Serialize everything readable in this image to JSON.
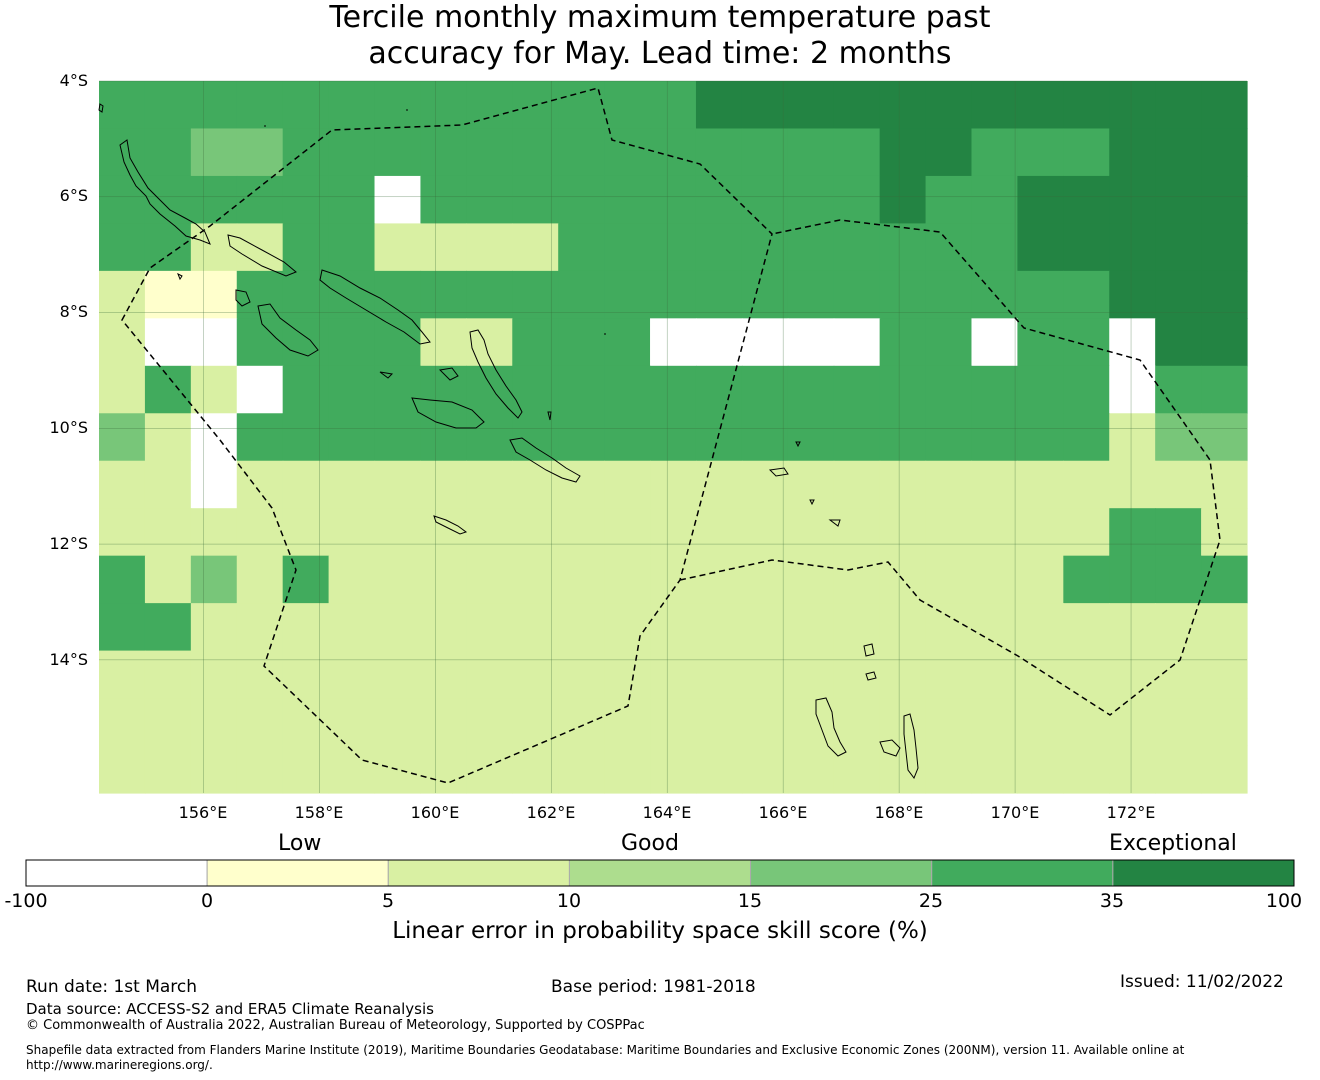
{
  "title": {
    "line1": "Tercile monthly maximum temperature past",
    "line2": "accuracy for May. Lead time: 2 months"
  },
  "map": {
    "lat_labels": [
      "4°S",
      "6°S",
      "8°S",
      "10°S",
      "12°S",
      "14°S"
    ],
    "lon_labels": [
      "156°E",
      "158°E",
      "160°E",
      "162°E",
      "164°E",
      "166°E",
      "168°E",
      "170°E",
      "172°E"
    ],
    "lon_range": [
      154.2,
      174.0
    ],
    "lat_range": [
      -16.3,
      -4.0
    ],
    "grid_res_deg": 0.833,
    "skill_grid_categories": [
      "0000000000000666666666666",
      "0044000000000000066000666",
      "0000005000000000060066666",
      "0033003333000000000066666",
      "3220000000000000000000666",
      "3110000330001111100100566",
      "3031000000000000000000500",
      "4310000000000000000000344",
      "3313333333333333333333333",
      "3333333333333333333333003",
      "0343033333333333333330000",
      "0033333333333333333333333",
      "3333333333333333333333333",
      "3333333333333333333333333",
      "3333333333333333333333333"
    ],
    "palette": [
      "#41ab5d",
      "#ffffff",
      "#ffffcc",
      "#d9f0a3",
      "#78c679",
      "#ffffff",
      "#238443",
      "#addd8e"
    ]
  },
  "colorbar": {
    "categories": [
      "Low",
      "Good",
      "Exceptional"
    ],
    "bins": [
      {
        "from": "-100",
        "to": "0",
        "color": "#ffffff"
      },
      {
        "from": "0",
        "to": "5",
        "color": "#ffffcc"
      },
      {
        "from": "5",
        "to": "10",
        "color": "#d9f0a3"
      },
      {
        "from": "10",
        "to": "15",
        "color": "#addd8e"
      },
      {
        "from": "15",
        "to": "25",
        "color": "#78c679"
      },
      {
        "from": "25",
        "to": "35",
        "color": "#41ab5d"
      },
      {
        "from": "35",
        "to": "100",
        "color": "#238443"
      }
    ],
    "ticks": [
      "-100",
      "0",
      "5",
      "10",
      "15",
      "25",
      "35",
      "100"
    ],
    "label": "Linear error in probability space skill score (%)"
  },
  "footer": {
    "run_date": "Run date: 1st March",
    "base_period": "Base period: 1981-2018",
    "issued": "Issued: 11/02/2022",
    "data_source": "Data source: ACCESS-S2 and ERA5 Climate Reanalysis",
    "copyright": "© Commonwealth of Australia 2022, Australian Bureau of Meteorology, Supported by COSPPac",
    "shapefile_line1": "Shapefile data extracted from Flanders Marine Institute (2019), Maritime Boundaries Geodatabase: Maritime Boundaries and Exclusive Economic Zones (200NM), version 11. Available online at",
    "shapefile_line2": "http://www.marineregions.org/."
  }
}
